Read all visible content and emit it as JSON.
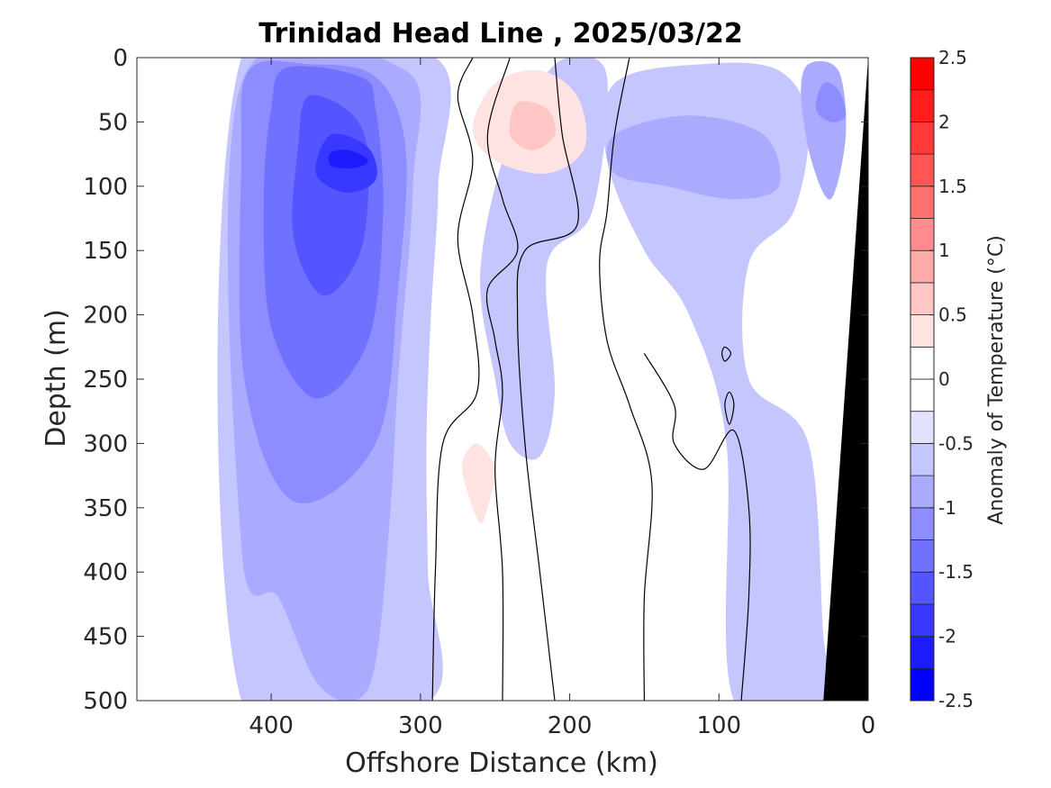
{
  "chart_data": {
    "type": "heatmap",
    "subtype": "filled-contour-section",
    "title": "Trinidad Head Line , 2025/03/22",
    "xlabel": "Offshore Distance (km)",
    "ylabel": "Depth (m)",
    "colorbar_label": "Anomaly of Temperature (°C)",
    "xlim": [
      490,
      0
    ],
    "ylim": [
      0,
      500
    ],
    "x_reversed": true,
    "y_reversed": true,
    "x_ticks": [
      400,
      300,
      200,
      100,
      0
    ],
    "x_tick_labels": [
      "400",
      "300",
      "200",
      "100",
      "0"
    ],
    "y_ticks": [
      0,
      50,
      100,
      150,
      200,
      250,
      300,
      350,
      400,
      450,
      500
    ],
    "y_tick_labels": [
      "0",
      "50",
      "100",
      "150",
      "200",
      "250",
      "300",
      "350",
      "400",
      "450",
      "500"
    ],
    "color_levels": [
      -2.5,
      -2.25,
      -2,
      -1.75,
      -1.5,
      -1.25,
      -1,
      -0.75,
      -0.5,
      -0.25,
      0,
      0.25,
      0.5,
      0.75,
      1,
      1.25,
      1.5,
      1.75,
      2,
      2.25,
      2.5
    ],
    "colorbar_ticks": [
      -2.5,
      -2,
      -1.5,
      -1,
      -0.5,
      0,
      0.5,
      1,
      1.5,
      2,
      2.5
    ],
    "colorbar_tick_labels": [
      "-2.5",
      "-2",
      "-1.5",
      "-1",
      "-0.5",
      "0",
      "0.5",
      "1",
      "1.5",
      "2",
      "2.5"
    ],
    "colormap": [
      "#0000ff",
      "#1c1cff",
      "#3838ff",
      "#5555ff",
      "#7171ff",
      "#8d8dff",
      "#aaaaff",
      "#c6c6ff",
      "#e2e2ff",
      "#ffffff",
      "#ffffff",
      "#ffe2e2",
      "#ffc6c6",
      "#ffaaaa",
      "#ff8d8d",
      "#ff7171",
      "#ff5555",
      "#ff3838",
      "#ff1c1c",
      "#ff0000"
    ],
    "zero_contour_color": "#000000",
    "land_color": "#000000",
    "data_extent_km": [
      420,
      0
    ],
    "regions": [
      {
        "level": -0.5,
        "points": [
          [
            420,
            0
          ],
          [
            290,
            0
          ],
          [
            288,
            100
          ],
          [
            293,
            200
          ],
          [
            296,
            300
          ],
          [
            295,
            400
          ],
          [
            294,
            500
          ],
          [
            420,
            500
          ]
        ]
      },
      {
        "level": -0.75,
        "points": [
          [
            420,
            20
          ],
          [
            310,
            10
          ],
          [
            305,
            100
          ],
          [
            315,
            250
          ],
          [
            320,
            350
          ],
          [
            330,
            470
          ],
          [
            345,
            500
          ],
          [
            370,
            485
          ],
          [
            395,
            420
          ],
          [
            420,
            380
          ]
        ]
      },
      {
        "level": -1.0,
        "points": [
          [
            415,
            10
          ],
          [
            375,
            5
          ],
          [
            330,
            15
          ],
          [
            310,
            70
          ],
          [
            315,
            180
          ],
          [
            330,
            300
          ],
          [
            385,
            345
          ],
          [
            418,
            250
          ],
          [
            420,
            80
          ]
        ]
      },
      {
        "level": -1.25,
        "points": [
          [
            390,
            8
          ],
          [
            340,
            15
          ],
          [
            330,
            40
          ],
          [
            325,
            120
          ],
          [
            335,
            220
          ],
          [
            370,
            265
          ],
          [
            400,
            210
          ],
          [
            405,
            110
          ],
          [
            400,
            40
          ]
        ]
      },
      {
        "level": -1.5,
        "points": [
          [
            375,
            30
          ],
          [
            345,
            45
          ],
          [
            335,
            80
          ],
          [
            340,
            150
          ],
          [
            365,
            185
          ],
          [
            385,
            140
          ],
          [
            382,
            70
          ]
        ]
      },
      {
        "level": -1.75,
        "points": [
          [
            360,
            60
          ],
          [
            335,
            70
          ],
          [
            330,
            95
          ],
          [
            350,
            105
          ],
          [
            370,
            90
          ]
        ]
      },
      {
        "level": -2.0,
        "points": [
          [
            360,
            74
          ],
          [
            348,
            72
          ],
          [
            335,
            80
          ],
          [
            345,
            86
          ],
          [
            360,
            84
          ]
        ]
      },
      {
        "level": -0.5,
        "points": [
          [
            200,
            0
          ],
          [
            175,
            15
          ],
          [
            185,
            120
          ],
          [
            215,
            160
          ],
          [
            210,
            260
          ],
          [
            220,
            310
          ],
          [
            240,
            300
          ],
          [
            250,
            250
          ],
          [
            260,
            170
          ],
          [
            245,
            80
          ],
          [
            220,
            20
          ]
        ]
      },
      {
        "level": -0.5,
        "points": [
          [
            170,
            20
          ],
          [
            110,
            5
          ],
          [
            60,
            10
          ],
          [
            40,
            50
          ],
          [
            50,
            120
          ],
          [
            80,
            160
          ],
          [
            80,
            250
          ],
          [
            40,
            300
          ],
          [
            30,
            450
          ],
          [
            25,
            500
          ],
          [
            90,
            500
          ],
          [
            95,
            300
          ],
          [
            120,
            200
          ],
          [
            150,
            150
          ],
          [
            175,
            80
          ]
        ]
      },
      {
        "level": -0.75,
        "points": [
          [
            170,
            60
          ],
          [
            120,
            45
          ],
          [
            70,
            60
          ],
          [
            60,
            100
          ],
          [
            90,
            110
          ],
          [
            135,
            100
          ],
          [
            170,
            90
          ]
        ]
      },
      {
        "level": -0.75,
        "points": [
          [
            40,
            5
          ],
          [
            20,
            10
          ],
          [
            15,
            60
          ],
          [
            25,
            110
          ],
          [
            38,
            80
          ],
          [
            45,
            30
          ]
        ]
      },
      {
        "level": -1.0,
        "points": [
          [
            30,
            20
          ],
          [
            20,
            25
          ],
          [
            15,
            45
          ],
          [
            25,
            50
          ],
          [
            35,
            40
          ]
        ]
      },
      {
        "level": 0.25,
        "points": [
          [
            250,
            20
          ],
          [
            220,
            10
          ],
          [
            195,
            30
          ],
          [
            190,
            70
          ],
          [
            215,
            90
          ],
          [
            250,
            80
          ],
          [
            265,
            55
          ]
        ]
      },
      {
        "level": 0.5,
        "points": [
          [
            235,
            35
          ],
          [
            215,
            40
          ],
          [
            210,
            60
          ],
          [
            225,
            72
          ],
          [
            240,
            60
          ]
        ]
      },
      {
        "level": 0.25,
        "points": [
          [
            262,
            300
          ],
          [
            250,
            320
          ],
          [
            255,
            350
          ],
          [
            260,
            362
          ],
          [
            268,
            340
          ],
          [
            272,
            315
          ]
        ]
      }
    ],
    "zero_contours": [
      [
        [
          265,
          0
        ],
        [
          275,
          30
        ],
        [
          265,
          80
        ],
        [
          275,
          140
        ],
        [
          265,
          200
        ],
        [
          262,
          260
        ],
        [
          285,
          300
        ],
        [
          290,
          400
        ],
        [
          292,
          500
        ]
      ],
      [
        [
          240,
          0
        ],
        [
          255,
          60
        ],
        [
          245,
          110
        ],
        [
          235,
          150
        ],
        [
          255,
          180
        ],
        [
          250,
          220
        ],
        [
          245,
          260
        ],
        [
          250,
          320
        ],
        [
          245,
          400
        ],
        [
          245,
          500
        ]
      ],
      [
        [
          210,
          0
        ],
        [
          205,
          60
        ],
        [
          195,
          130
        ],
        [
          230,
          150
        ],
        [
          235,
          200
        ],
        [
          230,
          300
        ],
        [
          220,
          400
        ],
        [
          210,
          500
        ]
      ],
      [
        [
          160,
          0
        ],
        [
          170,
          60
        ],
        [
          175,
          120
        ],
        [
          180,
          160
        ],
        [
          175,
          220
        ],
        [
          160,
          270
        ],
        [
          145,
          330
        ],
        [
          150,
          420
        ],
        [
          150,
          500
        ]
      ],
      [
        [
          150,
          230
        ],
        [
          130,
          270
        ],
        [
          130,
          300
        ],
        [
          110,
          320
        ],
        [
          90,
          290
        ],
        [
          80,
          350
        ],
        [
          80,
          420
        ],
        [
          85,
          500
        ]
      ],
      [
        [
          93,
          260
        ],
        [
          90,
          270
        ],
        [
          93,
          285
        ],
        [
          96,
          270
        ]
      ],
      [
        [
          96,
          225
        ],
        [
          92,
          230
        ],
        [
          96,
          236
        ],
        [
          98,
          230
        ]
      ]
    ]
  }
}
